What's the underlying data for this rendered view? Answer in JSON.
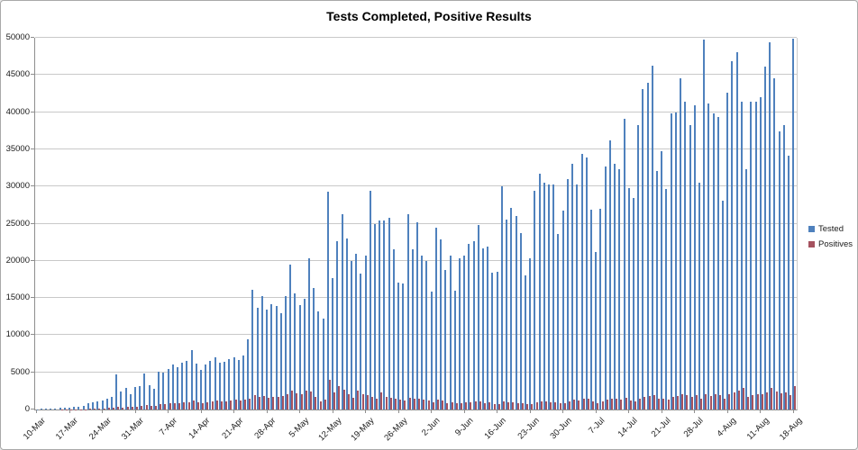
{
  "chart_data": {
    "type": "bar",
    "title": "Tests Completed, Positive Results",
    "xlabel": "",
    "ylabel": "",
    "ylim": [
      0,
      50000
    ],
    "grid": "horizontal",
    "legend_position": "right",
    "x_start": "10-Mar",
    "x_end": "18-Aug",
    "x_tick_every_days": 7,
    "x_tick_labels": [
      "10-Mar",
      "17-Mar",
      "24-Mar",
      "31-Mar",
      "7-Apr",
      "14-Apr",
      "21-Apr",
      "28-Apr",
      "5-May",
      "12-May",
      "19-May",
      "26-May",
      "2-Jun",
      "9-Jun",
      "16-Jun",
      "23-Jun",
      "30-Jun",
      "7-Jul",
      "14-Jul",
      "21-Jul",
      "28-Jul",
      "4-Aug",
      "11-Aug",
      "18-Aug"
    ],
    "y_tick_labels": [
      "0",
      "5000",
      "10000",
      "15000",
      "20000",
      "25000",
      "30000",
      "35000",
      "40000",
      "45000",
      "50000"
    ],
    "series": [
      {
        "name": "Tested",
        "color": "#4f81bd",
        "values": [
          50,
          80,
          100,
          130,
          160,
          200,
          250,
          300,
          350,
          420,
          500,
          800,
          950,
          1100,
          1250,
          1500,
          1700,
          4700,
          2400,
          2900,
          2100,
          3000,
          3100,
          4900,
          3300,
          2800,
          5100,
          5000,
          5500,
          6100,
          5700,
          6300,
          6500,
          8000,
          6200,
          5300,
          6100,
          6500,
          7000,
          6300,
          6400,
          6800,
          7000,
          6700,
          7300,
          9500,
          16100,
          13700,
          15300,
          13400,
          14200,
          13900,
          13000,
          15300,
          19500,
          15600,
          14100,
          14900,
          20400,
          16400,
          13250,
          12250,
          29300,
          17700,
          22600,
          26250,
          23000,
          19950,
          21000,
          18300,
          20750,
          29400,
          25000,
          25400,
          25400,
          25800,
          21550,
          17100,
          16900,
          26250,
          21550,
          25200,
          20750,
          19950,
          15900,
          24400,
          22850,
          18750,
          20700,
          16000,
          20350,
          20750,
          22250,
          22650,
          24800,
          21650,
          21900,
          18400,
          18500,
          30000,
          25500,
          27100,
          26000,
          23700,
          18050,
          20350,
          29400,
          31700,
          30500,
          30300,
          30300,
          23600,
          26700,
          31000,
          33000,
          30300,
          34350,
          33950,
          26850,
          21150,
          27050,
          32700,
          36200,
          33000,
          32300,
          39100,
          29750,
          28450,
          38300,
          43150,
          43900,
          46250,
          32100,
          34750,
          29700,
          39800,
          40000,
          44500,
          41400,
          38200,
          40950,
          30500,
          49700,
          41200,
          39800,
          39300,
          28100,
          42650,
          46800,
          48100,
          41400,
          32300,
          41350,
          41350,
          42000,
          46100,
          49400,
          44500,
          37400,
          38200,
          34200,
          49900
        ]
      },
      {
        "name": "Positives",
        "color": "#a5525f",
        "values": [
          0,
          0,
          0,
          5,
          5,
          10,
          15,
          20,
          30,
          40,
          60,
          90,
          110,
          130,
          160,
          200,
          240,
          420,
          300,
          350,
          320,
          400,
          450,
          600,
          500,
          480,
          700,
          750,
          800,
          900,
          850,
          950,
          1000,
          1200,
          1000,
          900,
          1000,
          1100,
          1200,
          1100,
          1150,
          1250,
          1300,
          1250,
          1350,
          1500,
          1900,
          1700,
          1800,
          1600,
          1700,
          1650,
          1800,
          2100,
          2600,
          2200,
          2100,
          2500,
          2400,
          1700,
          1100,
          1300,
          4000,
          2300,
          3130,
          2640,
          2100,
          1590,
          2520,
          2100,
          1990,
          1700,
          1500,
          2300,
          1700,
          1600,
          1500,
          1300,
          1250,
          1600,
          1400,
          1500,
          1300,
          1200,
          1000,
          1300,
          1200,
          900,
          1000,
          800,
          900,
          950,
          1000,
          1050,
          1100,
          900,
          950,
          700,
          750,
          1100,
          950,
          1000,
          900,
          850,
          700,
          750,
          1000,
          1100,
          1050,
          1000,
          950,
          800,
          900,
          1100,
          1300,
          1200,
          1500,
          1400,
          1100,
          900,
          1100,
          1300,
          1500,
          1400,
          1350,
          1600,
          1200,
          1150,
          1500,
          1700,
          1800,
          1900,
          1400,
          1500,
          1300,
          1700,
          1800,
          2000,
          1900,
          1750,
          1900,
          1500,
          2100,
          1800,
          2000,
          1950,
          1500,
          2100,
          2300,
          2500,
          2900,
          1700,
          1900,
          2000,
          2100,
          2300,
          2850,
          2400,
          2200,
          2300,
          1900,
          3100
        ]
      }
    ]
  },
  "colors": {
    "background": "#ffffff",
    "frame_border": "#a9a9a9",
    "gridline": "#c9c9c9",
    "axis_line": "#8e8e8e",
    "text": "#1a1a1a"
  },
  "legend": {
    "tested_label": "Tested",
    "positives_label": "Positives"
  }
}
